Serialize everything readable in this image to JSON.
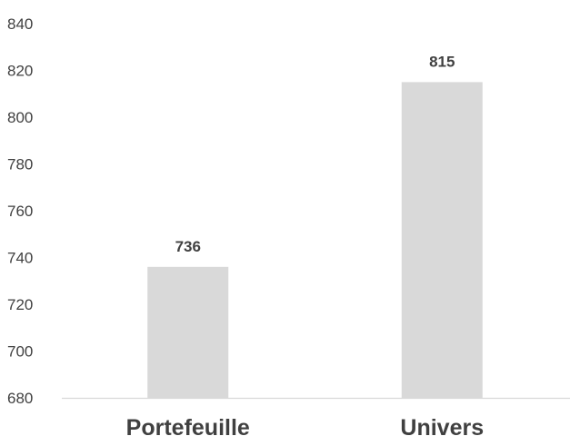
{
  "chart_data": {
    "type": "bar",
    "categories": [
      "Portefeuille",
      "Univers"
    ],
    "values": [
      736,
      815
    ],
    "data_labels": [
      "736",
      "815"
    ],
    "ylim": [
      680,
      840
    ],
    "yticks": [
      680,
      700,
      720,
      740,
      760,
      780,
      800,
      820,
      840
    ],
    "title": "",
    "xlabel": "",
    "ylabel": "",
    "grid": false,
    "legend": "none",
    "colors": {
      "bar": "#d9d9d9",
      "axis": "#d9d9d9",
      "text": "#404040"
    }
  }
}
